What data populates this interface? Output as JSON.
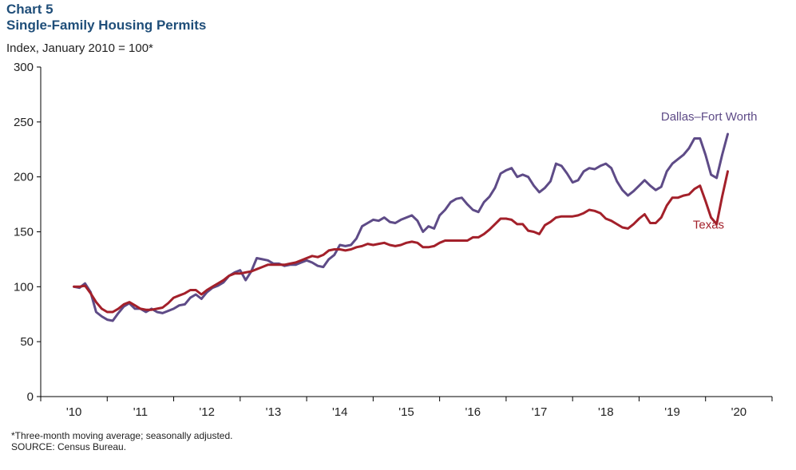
{
  "header": {
    "chart_number": "Chart 5",
    "title": "Single-Family Housing Permits",
    "units": "Index, January 2010 = 100*"
  },
  "notes": {
    "note1": "*Three-month moving average; seasonally adjusted.",
    "note2": "SOURCE: Census Bureau."
  },
  "colors": {
    "dfw": "#5e4b87",
    "texas": "#a3202a",
    "axis": "#000000",
    "title": "#1f4e79"
  },
  "chart_data": {
    "type": "line",
    "title": "Single-Family Housing Permits",
    "ylabel": "Index, January 2010 = 100*",
    "ylim": [
      0,
      300
    ],
    "yticks": [
      0,
      50,
      100,
      150,
      200,
      250,
      300
    ],
    "xlim": [
      2009.5,
      2020.5
    ],
    "xticks": [
      {
        "value": 2010,
        "label": "'10"
      },
      {
        "value": 2011,
        "label": "'11"
      },
      {
        "value": 2012,
        "label": "'12"
      },
      {
        "value": 2013,
        "label": "'13"
      },
      {
        "value": 2014,
        "label": "'14"
      },
      {
        "value": 2015,
        "label": "'15"
      },
      {
        "value": 2016,
        "label": "'16"
      },
      {
        "value": 2017,
        "label": "'17"
      },
      {
        "value": 2018,
        "label": "'18"
      },
      {
        "value": 2019,
        "label": "'19"
      },
      {
        "value": 2020,
        "label": "'20"
      }
    ],
    "grid": false,
    "series": [
      {
        "name": "Dallas–Fort Worth",
        "color_key": "dfw",
        "label_position": "right",
        "points": [
          [
            2010.0,
            100
          ],
          [
            2010.083,
            99
          ],
          [
            2010.167,
            103
          ],
          [
            2010.25,
            95
          ],
          [
            2010.333,
            77
          ],
          [
            2010.417,
            73
          ],
          [
            2010.5,
            70
          ],
          [
            2010.583,
            69
          ],
          [
            2010.667,
            76
          ],
          [
            2010.75,
            82
          ],
          [
            2010.833,
            85
          ],
          [
            2010.917,
            80
          ],
          [
            2011.0,
            80
          ],
          [
            2011.083,
            77
          ],
          [
            2011.167,
            80
          ],
          [
            2011.25,
            77
          ],
          [
            2011.333,
            76
          ],
          [
            2011.417,
            78
          ],
          [
            2011.5,
            80
          ],
          [
            2011.583,
            83
          ],
          [
            2011.667,
            84
          ],
          [
            2011.75,
            90
          ],
          [
            2011.833,
            93
          ],
          [
            2011.917,
            89
          ],
          [
            2012.0,
            95
          ],
          [
            2012.083,
            99
          ],
          [
            2012.167,
            101
          ],
          [
            2012.25,
            104
          ],
          [
            2012.333,
            110
          ],
          [
            2012.417,
            113
          ],
          [
            2012.5,
            115
          ],
          [
            2012.583,
            106
          ],
          [
            2012.667,
            114
          ],
          [
            2012.75,
            126
          ],
          [
            2012.833,
            125
          ],
          [
            2012.917,
            124
          ],
          [
            2013.0,
            121
          ],
          [
            2013.083,
            121
          ],
          [
            2013.167,
            119
          ],
          [
            2013.25,
            120
          ],
          [
            2013.333,
            120
          ],
          [
            2013.417,
            122
          ],
          [
            2013.5,
            124
          ],
          [
            2013.583,
            122
          ],
          [
            2013.667,
            119
          ],
          [
            2013.75,
            118
          ],
          [
            2013.833,
            125
          ],
          [
            2013.917,
            129
          ],
          [
            2014.0,
            138
          ],
          [
            2014.083,
            137
          ],
          [
            2014.167,
            138
          ],
          [
            2014.25,
            144
          ],
          [
            2014.333,
            155
          ],
          [
            2014.417,
            158
          ],
          [
            2014.5,
            161
          ],
          [
            2014.583,
            160
          ],
          [
            2014.667,
            163
          ],
          [
            2014.75,
            159
          ],
          [
            2014.833,
            158
          ],
          [
            2014.917,
            161
          ],
          [
            2015.0,
            163
          ],
          [
            2015.083,
            165
          ],
          [
            2015.167,
            160
          ],
          [
            2015.25,
            150
          ],
          [
            2015.333,
            155
          ],
          [
            2015.417,
            153
          ],
          [
            2015.5,
            165
          ],
          [
            2015.583,
            170
          ],
          [
            2015.667,
            177
          ],
          [
            2015.75,
            180
          ],
          [
            2015.833,
            181
          ],
          [
            2015.917,
            175
          ],
          [
            2016.0,
            170
          ],
          [
            2016.083,
            168
          ],
          [
            2016.167,
            177
          ],
          [
            2016.25,
            182
          ],
          [
            2016.333,
            190
          ],
          [
            2016.417,
            203
          ],
          [
            2016.5,
            206
          ],
          [
            2016.583,
            208
          ],
          [
            2016.667,
            200
          ],
          [
            2016.75,
            202
          ],
          [
            2016.833,
            200
          ],
          [
            2016.917,
            192
          ],
          [
            2017.0,
            186
          ],
          [
            2017.083,
            190
          ],
          [
            2017.167,
            196
          ],
          [
            2017.25,
            212
          ],
          [
            2017.333,
            210
          ],
          [
            2017.417,
            203
          ],
          [
            2017.5,
            195
          ],
          [
            2017.583,
            197
          ],
          [
            2017.667,
            205
          ],
          [
            2017.75,
            208
          ],
          [
            2017.833,
            207
          ],
          [
            2017.917,
            210
          ],
          [
            2018.0,
            212
          ],
          [
            2018.083,
            208
          ],
          [
            2018.167,
            196
          ],
          [
            2018.25,
            188
          ],
          [
            2018.333,
            183
          ],
          [
            2018.417,
            187
          ],
          [
            2018.5,
            192
          ],
          [
            2018.583,
            197
          ],
          [
            2018.667,
            192
          ],
          [
            2018.75,
            188
          ],
          [
            2018.833,
            191
          ],
          [
            2018.917,
            205
          ],
          [
            2019.0,
            212
          ],
          [
            2019.083,
            216
          ],
          [
            2019.167,
            220
          ],
          [
            2019.25,
            226
          ],
          [
            2019.333,
            235
          ],
          [
            2019.417,
            235
          ],
          [
            2019.5,
            220
          ],
          [
            2019.583,
            202
          ],
          [
            2019.667,
            199
          ],
          [
            2019.75,
            220
          ],
          [
            2019.833,
            239
          ]
        ]
      },
      {
        "name": "Texas",
        "color_key": "texas",
        "label_position": "below",
        "points": [
          [
            2010.0,
            100
          ],
          [
            2010.083,
            100
          ],
          [
            2010.167,
            101
          ],
          [
            2010.25,
            94
          ],
          [
            2010.333,
            86
          ],
          [
            2010.417,
            80
          ],
          [
            2010.5,
            77
          ],
          [
            2010.583,
            77
          ],
          [
            2010.667,
            80
          ],
          [
            2010.75,
            84
          ],
          [
            2010.833,
            86
          ],
          [
            2010.917,
            83
          ],
          [
            2011.0,
            80
          ],
          [
            2011.083,
            79
          ],
          [
            2011.167,
            79
          ],
          [
            2011.25,
            80
          ],
          [
            2011.333,
            81
          ],
          [
            2011.417,
            85
          ],
          [
            2011.5,
            90
          ],
          [
            2011.583,
            92
          ],
          [
            2011.667,
            94
          ],
          [
            2011.75,
            97
          ],
          [
            2011.833,
            97
          ],
          [
            2011.917,
            93
          ],
          [
            2012.0,
            97
          ],
          [
            2012.083,
            100
          ],
          [
            2012.167,
            103
          ],
          [
            2012.25,
            106
          ],
          [
            2012.333,
            110
          ],
          [
            2012.417,
            112
          ],
          [
            2012.5,
            112
          ],
          [
            2012.583,
            113
          ],
          [
            2012.667,
            114
          ],
          [
            2012.75,
            116
          ],
          [
            2012.833,
            118
          ],
          [
            2012.917,
            120
          ],
          [
            2013.0,
            120
          ],
          [
            2013.083,
            120
          ],
          [
            2013.167,
            120
          ],
          [
            2013.25,
            121
          ],
          [
            2013.333,
            122
          ],
          [
            2013.417,
            124
          ],
          [
            2013.5,
            126
          ],
          [
            2013.583,
            128
          ],
          [
            2013.667,
            127
          ],
          [
            2013.75,
            129
          ],
          [
            2013.833,
            133
          ],
          [
            2013.917,
            134
          ],
          [
            2014.0,
            134
          ],
          [
            2014.083,
            133
          ],
          [
            2014.167,
            134
          ],
          [
            2014.25,
            136
          ],
          [
            2014.333,
            137
          ],
          [
            2014.417,
            139
          ],
          [
            2014.5,
            138
          ],
          [
            2014.583,
            139
          ],
          [
            2014.667,
            140
          ],
          [
            2014.75,
            138
          ],
          [
            2014.833,
            137
          ],
          [
            2014.917,
            138
          ],
          [
            2015.0,
            140
          ],
          [
            2015.083,
            141
          ],
          [
            2015.167,
            140
          ],
          [
            2015.25,
            136
          ],
          [
            2015.333,
            136
          ],
          [
            2015.417,
            137
          ],
          [
            2015.5,
            140
          ],
          [
            2015.583,
            142
          ],
          [
            2015.667,
            142
          ],
          [
            2015.75,
            142
          ],
          [
            2015.833,
            142
          ],
          [
            2015.917,
            142
          ],
          [
            2016.0,
            145
          ],
          [
            2016.083,
            145
          ],
          [
            2016.167,
            148
          ],
          [
            2016.25,
            152
          ],
          [
            2016.333,
            157
          ],
          [
            2016.417,
            162
          ],
          [
            2016.5,
            162
          ],
          [
            2016.583,
            161
          ],
          [
            2016.667,
            157
          ],
          [
            2016.75,
            157
          ],
          [
            2016.833,
            151
          ],
          [
            2016.917,
            150
          ],
          [
            2017.0,
            148
          ],
          [
            2017.083,
            156
          ],
          [
            2017.167,
            159
          ],
          [
            2017.25,
            163
          ],
          [
            2017.333,
            164
          ],
          [
            2017.417,
            164
          ],
          [
            2017.5,
            164
          ],
          [
            2017.583,
            165
          ],
          [
            2017.667,
            167
          ],
          [
            2017.75,
            170
          ],
          [
            2017.833,
            169
          ],
          [
            2017.917,
            167
          ],
          [
            2018.0,
            162
          ],
          [
            2018.083,
            160
          ],
          [
            2018.167,
            157
          ],
          [
            2018.25,
            154
          ],
          [
            2018.333,
            153
          ],
          [
            2018.417,
            157
          ],
          [
            2018.5,
            162
          ],
          [
            2018.583,
            166
          ],
          [
            2018.667,
            158
          ],
          [
            2018.75,
            158
          ],
          [
            2018.833,
            163
          ],
          [
            2018.917,
            174
          ],
          [
            2019.0,
            181
          ],
          [
            2019.083,
            181
          ],
          [
            2019.167,
            183
          ],
          [
            2019.25,
            184
          ],
          [
            2019.333,
            189
          ],
          [
            2019.417,
            192
          ],
          [
            2019.5,
            178
          ],
          [
            2019.583,
            163
          ],
          [
            2019.667,
            157
          ],
          [
            2019.75,
            182
          ],
          [
            2019.833,
            205
          ]
        ]
      }
    ]
  }
}
